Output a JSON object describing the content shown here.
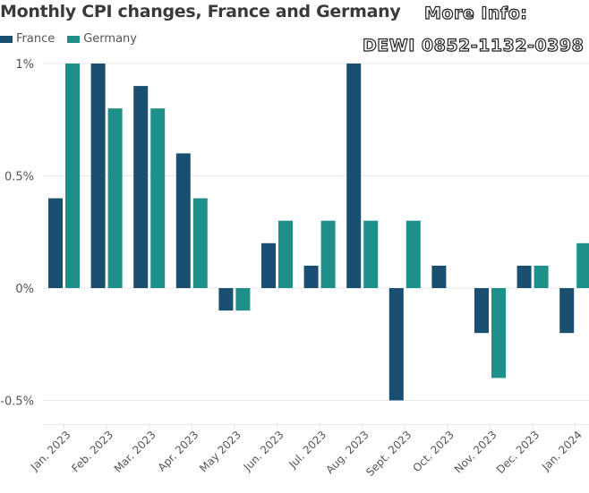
{
  "watermark": {
    "line1": "More Info:",
    "line2": "DEWI   0852-1132-0398"
  },
  "chart_data": {
    "type": "bar",
    "title": "Monthly CPI changes, France and Germany",
    "xlabel": "",
    "ylabel": "",
    "ylim": [
      -0.6,
      1.0
    ],
    "yticks": [
      1.0,
      0.5,
      0.0,
      -0.5
    ],
    "ytick_labels": [
      "1%",
      "0.5%",
      "0%",
      "-0.5%"
    ],
    "grid": true,
    "legend_position": "top-left",
    "categories": [
      "Jan. 2023",
      "Feb. 2023",
      "Mar. 2023",
      "Apr. 2023",
      "May 2023",
      "Jun. 2023",
      "Jul. 2023",
      "Aug. 2023",
      "Sept. 2023",
      "Oct. 2023",
      "Nov. 2023",
      "Dec. 2023",
      "Jan. 2024"
    ],
    "series": [
      {
        "name": "France",
        "color": "#1b4f72",
        "values": [
          0.4,
          1.0,
          0.9,
          0.6,
          -0.1,
          0.2,
          0.1,
          1.0,
          -0.5,
          0.1,
          -0.2,
          0.1,
          -0.2
        ]
      },
      {
        "name": "Germany",
        "color": "#1f8f8a",
        "values": [
          1.0,
          0.8,
          0.8,
          0.4,
          -0.1,
          0.3,
          0.3,
          0.3,
          0.3,
          0.0,
          -0.4,
          0.1,
          0.2
        ]
      }
    ]
  }
}
